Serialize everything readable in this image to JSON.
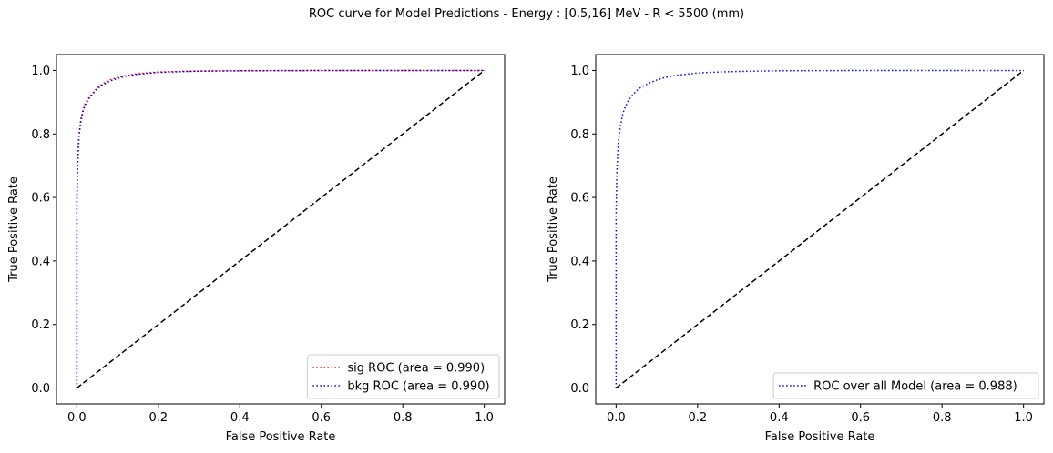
{
  "figure": {
    "title": "ROC curve for Model Predictions - Energy : [0.5,16] MeV - R < 5500 (mm)"
  },
  "chart_data": [
    {
      "type": "line",
      "xlabel": "False Positive Rate",
      "ylabel": "True Positive Rate",
      "xlim": [
        -0.05,
        1.05
      ],
      "ylim": [
        -0.05,
        1.05
      ],
      "xticks": [
        "0.0",
        "0.2",
        "0.4",
        "0.6",
        "0.8",
        "1.0"
      ],
      "yticks": [
        "0.0",
        "0.2",
        "0.4",
        "0.6",
        "0.8",
        "1.0"
      ],
      "legend_position": "lower-right",
      "series": [
        {
          "name": "sig ROC (area = 0.990)",
          "color": "#ff0000",
          "style": "dotted",
          "x": [
            0,
            0.0,
            0.002,
            0.004,
            0.006,
            0.008,
            0.01,
            0.015,
            0.02,
            0.03,
            0.04,
            0.05,
            0.06,
            0.08,
            0.1,
            0.12,
            0.15,
            0.2,
            0.25,
            0.3,
            0.4,
            0.5,
            0.6,
            0.8,
            1.0
          ],
          "y": [
            0,
            0.6,
            0.72,
            0.78,
            0.81,
            0.83,
            0.85,
            0.875,
            0.895,
            0.915,
            0.93,
            0.945,
            0.955,
            0.97,
            0.978,
            0.984,
            0.99,
            0.995,
            0.997,
            0.998,
            0.999,
            0.9995,
            0.9998,
            1.0,
            1.0
          ]
        },
        {
          "name": "bkg ROC (area = 0.990)",
          "color": "#0000ff",
          "style": "dotted",
          "x": [
            0,
            0.0,
            0.002,
            0.004,
            0.006,
            0.008,
            0.01,
            0.015,
            0.02,
            0.03,
            0.04,
            0.05,
            0.06,
            0.08,
            0.1,
            0.12,
            0.15,
            0.2,
            0.25,
            0.3,
            0.4,
            0.5,
            0.6,
            0.8,
            1.0
          ],
          "y": [
            0,
            0.58,
            0.7,
            0.76,
            0.8,
            0.82,
            0.84,
            0.87,
            0.89,
            0.912,
            0.928,
            0.942,
            0.952,
            0.966,
            0.975,
            0.982,
            0.988,
            0.994,
            0.996,
            0.998,
            0.999,
            0.9995,
            0.9998,
            1.0,
            1.0
          ]
        },
        {
          "name": "",
          "color": "#000000",
          "style": "dashed",
          "x": [
            0,
            1
          ],
          "y": [
            0,
            1
          ]
        }
      ]
    },
    {
      "type": "line",
      "xlabel": "False Positive Rate",
      "ylabel": "True Positive Rate",
      "xlim": [
        -0.05,
        1.05
      ],
      "ylim": [
        -0.05,
        1.05
      ],
      "xticks": [
        "0.0",
        "0.2",
        "0.4",
        "0.6",
        "0.8",
        "1.0"
      ],
      "yticks": [
        "0.0",
        "0.2",
        "0.4",
        "0.6",
        "0.8",
        "1.0"
      ],
      "legend_position": "lower-right",
      "series": [
        {
          "name": "ROC over all Model (area = 0.988)",
          "color": "#0000ff",
          "style": "dotted",
          "x": [
            0,
            0.0,
            0.002,
            0.004,
            0.006,
            0.008,
            0.01,
            0.015,
            0.02,
            0.03,
            0.04,
            0.05,
            0.06,
            0.08,
            0.1,
            0.12,
            0.15,
            0.2,
            0.25,
            0.3,
            0.4,
            0.5,
            0.6,
            0.8,
            1.0
          ],
          "y": [
            0,
            0.55,
            0.68,
            0.74,
            0.78,
            0.8,
            0.82,
            0.855,
            0.878,
            0.905,
            0.922,
            0.936,
            0.946,
            0.96,
            0.97,
            0.978,
            0.985,
            0.992,
            0.995,
            0.997,
            0.999,
            0.9995,
            0.9998,
            1.0,
            1.0
          ]
        },
        {
          "name": "",
          "color": "#000000",
          "style": "dashed",
          "x": [
            0,
            1
          ],
          "y": [
            0,
            1
          ]
        }
      ]
    }
  ]
}
